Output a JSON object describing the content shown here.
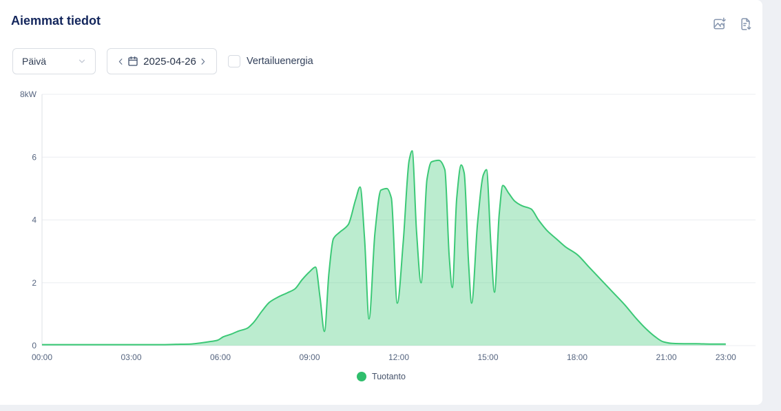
{
  "header": {
    "title": "Aiemmat tiedot",
    "icons": [
      {
        "name": "export-image-icon"
      },
      {
        "name": "export-file-icon"
      }
    ]
  },
  "controls": {
    "period_select": {
      "value": "Päivä"
    },
    "date_picker": {
      "value": "2025-04-26"
    },
    "comparison_checkbox": {
      "label": "Vertailuenergia",
      "checked": false
    }
  },
  "chart_data": {
    "type": "area",
    "title": "",
    "xlabel": "",
    "ylabel": "kW",
    "grid": true,
    "legend_position": "bottom",
    "xlim_hours": [
      0,
      24
    ],
    "ylim": [
      0,
      8
    ],
    "x_ticks": [
      "00:00",
      "03:00",
      "06:00",
      "09:00",
      "12:00",
      "15:00",
      "18:00",
      "21:00",
      "23:00"
    ],
    "x_tick_hours": [
      0,
      3,
      6,
      9,
      12,
      15,
      18,
      21,
      23
    ],
    "y_ticks": [
      "0",
      "2",
      "4",
      "6",
      "8kW"
    ],
    "y_tick_values": [
      0,
      2,
      4,
      6,
      8
    ],
    "series": [
      {
        "name": "Tuotanto",
        "color": "#3bc876",
        "fill_color": "rgba(59,200,118,0.35)",
        "points_hour_kw": [
          [
            0,
            0.03
          ],
          [
            0.5,
            0.03
          ],
          [
            1,
            0.03
          ],
          [
            1.5,
            0.03
          ],
          [
            2,
            0.03
          ],
          [
            2.5,
            0.03
          ],
          [
            3,
            0.03
          ],
          [
            3.5,
            0.03
          ],
          [
            4,
            0.03
          ],
          [
            4.5,
            0.04
          ],
          [
            5,
            0.05
          ],
          [
            5.3,
            0.08
          ],
          [
            5.6,
            0.12
          ],
          [
            5.9,
            0.17
          ],
          [
            6.1,
            0.28
          ],
          [
            6.35,
            0.36
          ],
          [
            6.6,
            0.46
          ],
          [
            6.9,
            0.55
          ],
          [
            7.1,
            0.72
          ],
          [
            7.4,
            1.1
          ],
          [
            7.65,
            1.38
          ],
          [
            7.95,
            1.55
          ],
          [
            8.25,
            1.68
          ],
          [
            8.5,
            1.8
          ],
          [
            8.75,
            2.1
          ],
          [
            9,
            2.35
          ],
          [
            9.2,
            2.5
          ],
          [
            9.35,
            1.55
          ],
          [
            9.5,
            0.45
          ],
          [
            9.65,
            2.3
          ],
          [
            9.8,
            3.4
          ],
          [
            10,
            3.6
          ],
          [
            10.3,
            3.85
          ],
          [
            10.55,
            4.65
          ],
          [
            10.7,
            5.05
          ],
          [
            10.85,
            3.4
          ],
          [
            11,
            0.85
          ],
          [
            11.2,
            3.6
          ],
          [
            11.4,
            4.95
          ],
          [
            11.6,
            5.0
          ],
          [
            11.75,
            4.7
          ],
          [
            11.95,
            1.35
          ],
          [
            12.15,
            3.3
          ],
          [
            12.35,
            5.9
          ],
          [
            12.45,
            6.2
          ],
          [
            12.6,
            3.6
          ],
          [
            12.75,
            2.0
          ],
          [
            12.95,
            5.3
          ],
          [
            13.1,
            5.85
          ],
          [
            13.35,
            5.9
          ],
          [
            13.55,
            5.6
          ],
          [
            13.7,
            2.8
          ],
          [
            13.8,
            1.85
          ],
          [
            13.95,
            4.7
          ],
          [
            14.1,
            5.75
          ],
          [
            14.2,
            5.5
          ],
          [
            14.35,
            2.6
          ],
          [
            14.45,
            1.35
          ],
          [
            14.65,
            3.9
          ],
          [
            14.85,
            5.45
          ],
          [
            14.95,
            5.6
          ],
          [
            15.1,
            3.2
          ],
          [
            15.22,
            1.7
          ],
          [
            15.38,
            4.2
          ],
          [
            15.5,
            5.1
          ],
          [
            15.7,
            4.85
          ],
          [
            15.9,
            4.6
          ],
          [
            16.15,
            4.45
          ],
          [
            16.45,
            4.35
          ],
          [
            16.7,
            4.0
          ],
          [
            17,
            3.65
          ],
          [
            17.3,
            3.4
          ],
          [
            17.6,
            3.15
          ],
          [
            18,
            2.9
          ],
          [
            18.4,
            2.5
          ],
          [
            18.8,
            2.1
          ],
          [
            19.2,
            1.7
          ],
          [
            19.6,
            1.3
          ],
          [
            20,
            0.85
          ],
          [
            20.3,
            0.55
          ],
          [
            20.6,
            0.3
          ],
          [
            20.9,
            0.12
          ],
          [
            21.2,
            0.07
          ],
          [
            21.6,
            0.06
          ],
          [
            22,
            0.06
          ],
          [
            22.5,
            0.05
          ],
          [
            23,
            0.05
          ]
        ]
      }
    ]
  },
  "legend": {
    "items": [
      {
        "label": "Tuotanto",
        "color": "#2fbe6c"
      }
    ]
  },
  "colors": {
    "title": "#13265c",
    "card_bg": "#ffffff",
    "page_bg": "#eef0f4",
    "grid_line": "#ebedf1",
    "axis_line": "#dde0e6",
    "axis_text": "#55647f",
    "control_border": "#d9dde3",
    "icon_slate": "#8494ad",
    "series_green": "#3bc876"
  }
}
